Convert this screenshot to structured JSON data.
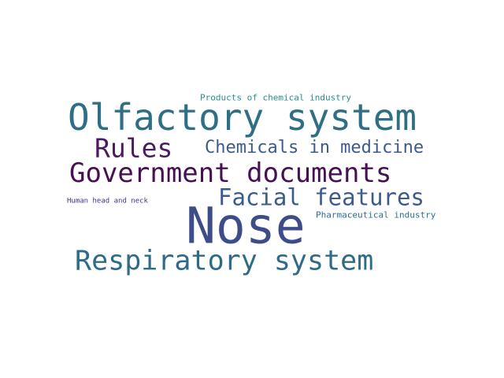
{
  "words": [
    {
      "text": "Products of chemical industry",
      "color": "#2a8c8c"
    },
    {
      "text": "Olfactory system",
      "color": "#2e6f86"
    },
    {
      "text": "Rules",
      "color": "#4b1a64"
    },
    {
      "text": "Chemicals in medicine",
      "color": "#3d5a8e"
    },
    {
      "text": "Government documents",
      "color": "#461052"
    },
    {
      "text": "Facial features",
      "color": "#3a5b8c"
    },
    {
      "text": "Human head and neck",
      "color": "#46328a"
    },
    {
      "text": "Nose",
      "color": "#3d4d8a"
    },
    {
      "text": "Pharmaceutical industry",
      "color": "#2d6d8e"
    },
    {
      "text": "Respiratory system",
      "color": "#2f6b88"
    }
  ]
}
